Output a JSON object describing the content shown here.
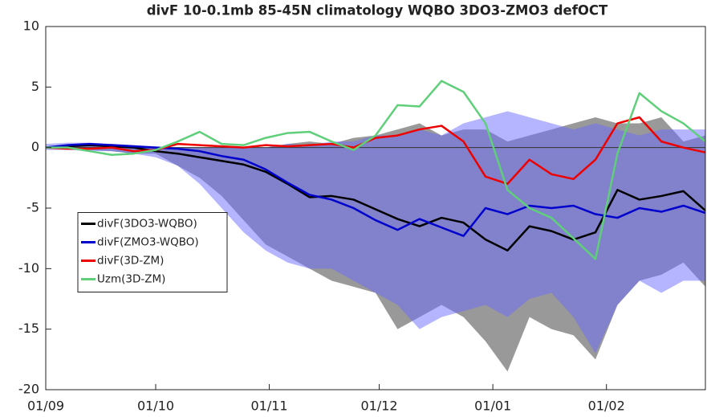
{
  "chart_data": {
    "type": "line",
    "title": "divF 10-0.1mb 85-45N climatology WQBO 3DO3-ZMO3 defOCT",
    "x": [
      0,
      6,
      12,
      18,
      24,
      30,
      36,
      42,
      48,
      54,
      60,
      66,
      72,
      78,
      84,
      90,
      96,
      102,
      108,
      114,
      120,
      126,
      132,
      138,
      144,
      150,
      156,
      162,
      168,
      174,
      180
    ],
    "xlim": [
      0,
      180
    ],
    "xticks": [
      {
        "value": 0,
        "label": "01/09"
      },
      {
        "value": 30,
        "label": "01/10"
      },
      {
        "value": 61,
        "label": "01/11"
      },
      {
        "value": 91,
        "label": "01/12"
      },
      {
        "value": 122,
        "label": "01/01"
      },
      {
        "value": 153,
        "label": "01/02"
      }
    ],
    "ylim": [
      -20,
      10
    ],
    "yticks": [
      -20,
      -15,
      -10,
      -5,
      0,
      5,
      10
    ],
    "legend": "west",
    "bands": [
      {
        "color": "#808080",
        "upper": [
          0.1,
          0.2,
          0.3,
          0.3,
          0.2,
          0,
          0,
          0,
          0,
          0,
          0,
          0.3,
          0.5,
          0.3,
          0.8,
          1.0,
          1.5,
          2.0,
          1.0,
          1.5,
          1.5,
          0.5,
          1.0,
          1.5,
          2.0,
          2.5,
          2.0,
          2.0,
          2.5,
          0.5,
          1.0
        ],
        "lower": [
          0,
          -0.1,
          -0.2,
          -0.3,
          -0.5,
          -0.5,
          -1.5,
          -2.5,
          -4,
          -6,
          -8,
          -9,
          -10,
          -11,
          -11.5,
          -12,
          -15,
          -14,
          -13,
          -14,
          -16,
          -18.5,
          -14,
          -15,
          -15.5,
          -17.5,
          -13,
          -11,
          -10.5,
          -9.5,
          -11.5
        ]
      },
      {
        "color": "#6a6aff",
        "upper": [
          0.3,
          0.4,
          0.4,
          0.3,
          0.2,
          0.1,
          0,
          0,
          0,
          0,
          0,
          0.3,
          0.2,
          0.5,
          0.5,
          1.0,
          1.0,
          1.5,
          1.0,
          2.0,
          2.5,
          3.0,
          2.5,
          2.0,
          1.5,
          2.0,
          1.5,
          1.0,
          1.5,
          1.5,
          1.5
        ],
        "lower": [
          -0.2,
          -0.2,
          -0.3,
          -0.3,
          -0.5,
          -0.8,
          -1.5,
          -3,
          -5,
          -7,
          -8.5,
          -9.5,
          -10,
          -10,
          -11,
          -12,
          -13,
          -15,
          -14,
          -13.5,
          -13,
          -14,
          -12.5,
          -12,
          -14,
          -17,
          -13,
          -11,
          -12,
          -11,
          -11
        ]
      }
    ],
    "series": [
      {
        "name": "divF(3DO3-WQBO)",
        "color": "#000000",
        "values": [
          0,
          0.1,
          0.2,
          0.1,
          0,
          -0.3,
          -0.5,
          -0.8,
          -1.1,
          -1.4,
          -2.0,
          -3.0,
          -4.1,
          -4.0,
          -4.3,
          -5.1,
          -5.9,
          -6.5,
          -5.8,
          -6.2,
          -7.6,
          -8.5,
          -6.5,
          -6.9,
          -7.6,
          -7.0,
          -3.5,
          -4.3,
          -4.0,
          -3.6,
          -5.2
        ]
      },
      {
        "name": "divF(ZMO3-WQBO)",
        "color": "#0000cc",
        "values": [
          0,
          0.2,
          0.3,
          0.2,
          0.1,
          0,
          -0.1,
          -0.3,
          -0.7,
          -1.0,
          -1.8,
          -2.9,
          -3.9,
          -4.3,
          -5.0,
          -6.0,
          -6.8,
          -5.9,
          -6.6,
          -7.3,
          -5.0,
          -5.5,
          -4.8,
          -5.0,
          -4.8,
          -5.5,
          -5.8,
          -5.0,
          -5.3,
          -4.8,
          -5.4
        ]
      },
      {
        "name": "divF(3D-ZM)",
        "color": "#ee0000",
        "values": [
          0,
          -0.1,
          -0.1,
          0,
          -0.3,
          -0.2,
          0.3,
          0.2,
          0.1,
          0,
          0.2,
          0.1,
          0.2,
          0.3,
          0,
          0.8,
          1.0,
          1.5,
          1.8,
          0.5,
          -2.4,
          -3.0,
          -1.0,
          -2.2,
          -2.6,
          -1.0,
          2.0,
          2.5,
          0.5,
          0,
          -0.4
        ]
      },
      {
        "name": "Uzm(3D-ZM)",
        "color": "#5fcf7a",
        "values": [
          0,
          0,
          -0.3,
          -0.6,
          -0.5,
          -0.2,
          0.5,
          1.3,
          0.3,
          0.2,
          0.8,
          1.2,
          1.3,
          0.5,
          -0.2,
          1.0,
          3.5,
          3.4,
          5.5,
          4.6,
          2.0,
          -3.5,
          -5.0,
          -5.8,
          -7.5,
          -9.2,
          -0.5,
          4.5,
          3.0,
          2.0,
          0.5
        ]
      }
    ]
  }
}
